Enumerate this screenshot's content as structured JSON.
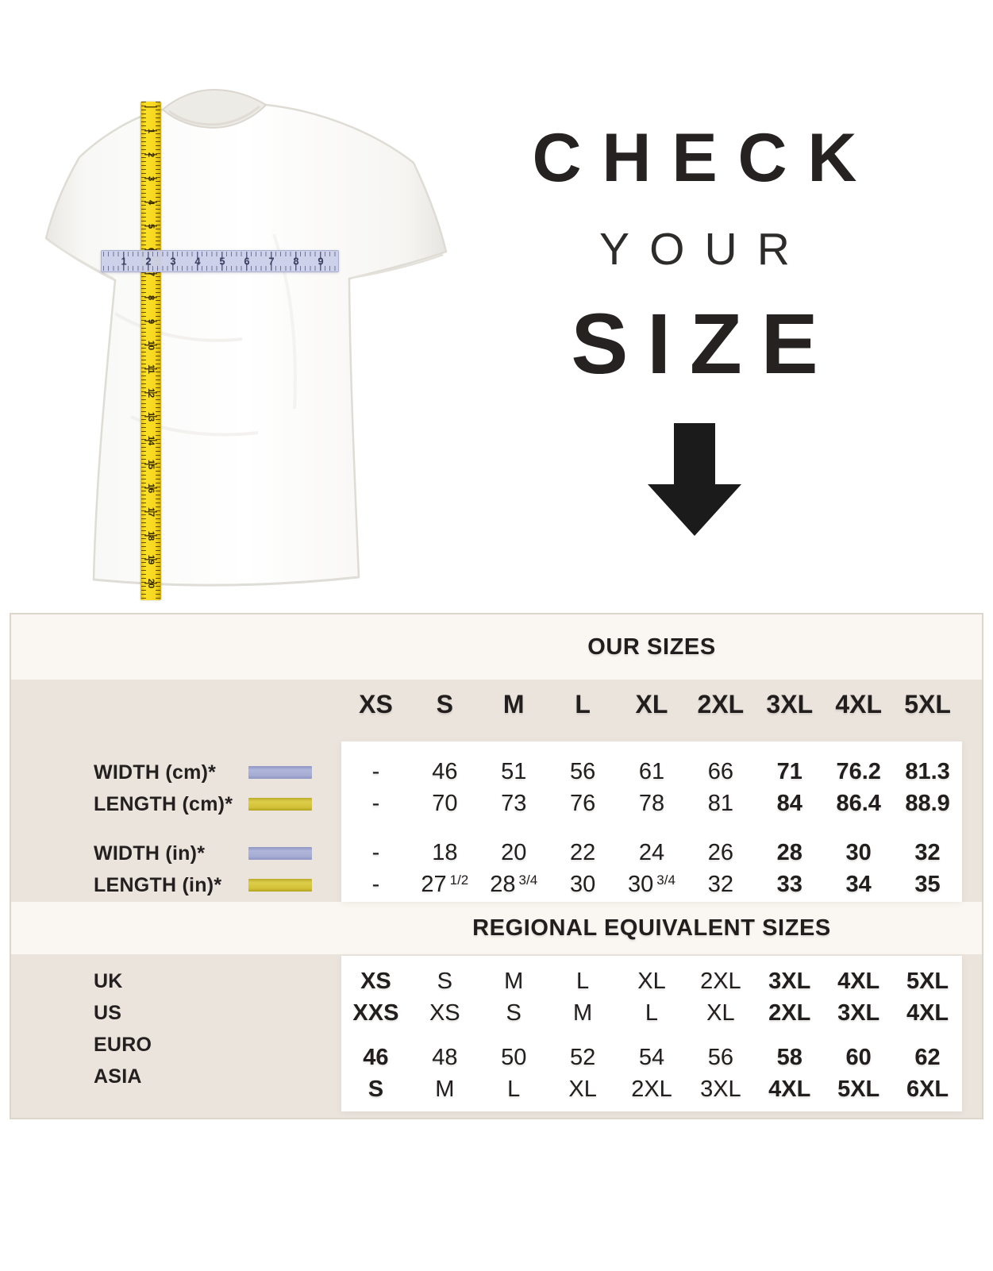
{
  "hero": {
    "line1": "CHECK",
    "line2": "YOUR",
    "line3": "SIZE"
  },
  "measure": {
    "tape_numbers": [
      "1",
      "2",
      "3",
      "4",
      "5",
      "6",
      "7",
      "8",
      "9",
      "10",
      "11",
      "12",
      "13",
      "14",
      "15",
      "16",
      "17",
      "18",
      "19",
      "20"
    ],
    "ruler_numbers": [
      "1",
      "2",
      "3",
      "4",
      "5",
      "6",
      "7",
      "8",
      "9"
    ]
  },
  "sizes_table": {
    "title": "OUR SIZES",
    "columns": [
      "XS",
      "S",
      "M",
      "L",
      "XL",
      "2XL",
      "3XL",
      "4XL",
      "5XL"
    ],
    "rows": [
      {
        "label": "WIDTH (cm)*",
        "swatch": "lavender",
        "values": [
          "-",
          "46",
          "51",
          "56",
          "61",
          "66",
          "71",
          "76.2",
          "81.3"
        ]
      },
      {
        "label": "LENGTH (cm)*",
        "swatch": "yellow",
        "values": [
          "-",
          "70",
          "73",
          "76",
          "78",
          "81",
          "84",
          "86.4",
          "88.9"
        ]
      },
      {
        "label": "WIDTH (in)*",
        "swatch": "lavender",
        "values": [
          "-",
          "18",
          "20",
          "22",
          "24",
          "26",
          "28",
          "30",
          "32"
        ]
      },
      {
        "label": "LENGTH (in)*",
        "swatch": "yellow",
        "values": [
          "-",
          "27 1/2",
          "28 3/4",
          "30",
          "30 3/4",
          "32",
          "33",
          "34",
          "35"
        ]
      }
    ]
  },
  "regional_table": {
    "title": "REGIONAL EQUIVALENT SIZES",
    "rows": [
      {
        "label": "UK",
        "values": [
          "XS",
          "S",
          "M",
          "L",
          "XL",
          "2XL",
          "3XL",
          "4XL",
          "5XL"
        ]
      },
      {
        "label": "US",
        "values": [
          "XXS",
          "XS",
          "S",
          "M",
          "L",
          "XL",
          "2XL",
          "3XL",
          "4XL"
        ]
      },
      {
        "label": "EURO",
        "values": [
          "46",
          "48",
          "50",
          "52",
          "54",
          "56",
          "58",
          "60",
          "62"
        ]
      },
      {
        "label": "ASIA",
        "values": [
          "S",
          "M",
          "L",
          "XL",
          "2XL",
          "3XL",
          "4XL",
          "5XL",
          "6XL"
        ]
      }
    ]
  },
  "colors": {
    "beige": "#eae4dd",
    "band": "#faf7f2",
    "panel_white": "#ffffff",
    "text": "#221e1e",
    "swatch_lavender": "#a9aed6",
    "swatch_yellow": "#d3c237",
    "tape_yellow": "#f7d71d",
    "ruler_lavender": "#cbcfe9",
    "arrow_black": "#1b1b1b"
  }
}
